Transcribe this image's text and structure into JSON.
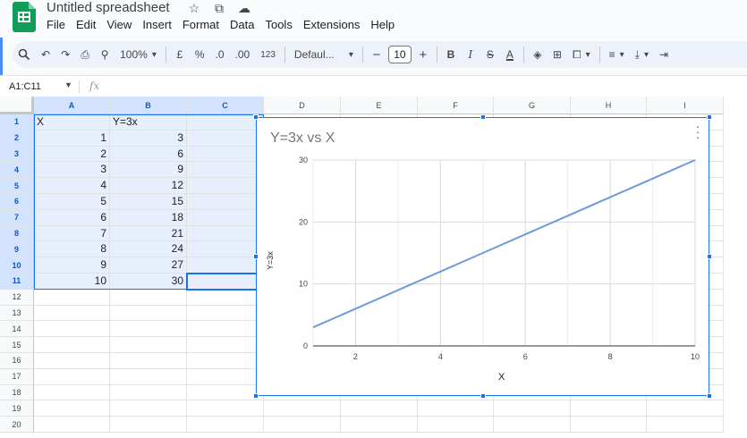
{
  "app": {
    "title": "Untitled spreadsheet",
    "menu": [
      "File",
      "Edit",
      "View",
      "Insert",
      "Format",
      "Data",
      "Tools",
      "Extensions",
      "Help"
    ]
  },
  "toolbar": {
    "zoom": "100%",
    "currency": "£",
    "percent": "%",
    "dec_decrease": ".0",
    "dec_increase": ".00",
    "number_format": "123",
    "font": "Defaul...",
    "font_size": "10",
    "minus": "−",
    "plus": "+",
    "bold": "B",
    "italic": "I",
    "strike": "S",
    "text_color": "A"
  },
  "formula_bar": {
    "name_box": "A1:C11",
    "fx": "fx"
  },
  "columns": [
    "A",
    "B",
    "C",
    "D",
    "E",
    "F",
    "G",
    "H",
    "I"
  ],
  "rows": [
    "1",
    "2",
    "3",
    "4",
    "5",
    "6",
    "7",
    "8",
    "9",
    "10",
    "11",
    "12",
    "13",
    "14",
    "15",
    "16",
    "17",
    "18",
    "19",
    "20"
  ],
  "cells": {
    "headers": [
      "X",
      "Y=3x"
    ],
    "x": [
      "1",
      "2",
      "3",
      "4",
      "5",
      "6",
      "7",
      "8",
      "9",
      "10"
    ],
    "y": [
      "3",
      "6",
      "9",
      "12",
      "15",
      "18",
      "21",
      "24",
      "27",
      "30"
    ]
  },
  "colors": {
    "accent": "#1a73e8",
    "series": "#6f9bd8",
    "sheets_green": "#0f9d58"
  },
  "chart_data": {
    "type": "line",
    "title": "Y=3x vs X",
    "xlabel": "X",
    "ylabel": "Y=3x",
    "x": [
      1,
      2,
      3,
      4,
      5,
      6,
      7,
      8,
      9,
      10
    ],
    "series": [
      {
        "values": [
          3,
          6,
          9,
          12,
          15,
          18,
          21,
          24,
          27,
          30
        ]
      }
    ],
    "xticks": [
      "2",
      "4",
      "6",
      "8",
      "10"
    ],
    "yticks": [
      "0",
      "10",
      "20",
      "30"
    ],
    "xlim": [
      1,
      10
    ],
    "ylim": [
      0,
      30
    ],
    "grid": true,
    "legend": "none"
  }
}
